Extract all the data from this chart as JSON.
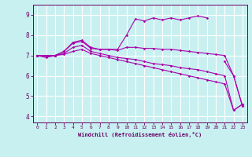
{
  "xlabel": "Windchill (Refroidissement éolien,°C)",
  "bg_color": "#c8f0f0",
  "line_color": "#aa00aa",
  "grid_color": "#ffffff",
  "spine_color": "#660066",
  "x_ticks": [
    0,
    1,
    2,
    3,
    4,
    5,
    6,
    7,
    8,
    9,
    10,
    11,
    12,
    13,
    14,
    15,
    16,
    17,
    18,
    19,
    20,
    21,
    22,
    23
  ],
  "y_ticks": [
    4,
    5,
    6,
    7,
    8,
    9
  ],
  "xlim": [
    -0.5,
    23.5
  ],
  "ylim": [
    3.7,
    9.5
  ],
  "lines": [
    {
      "x": [
        0,
        1,
        2,
        3,
        4,
        5,
        6,
        7,
        8,
        9,
        10,
        11,
        12,
        13,
        14,
        15,
        16,
        17,
        18,
        19,
        20,
        21,
        22,
        23
      ],
      "y": [
        7.0,
        6.9,
        7.0,
        7.2,
        7.65,
        7.75,
        7.4,
        7.3,
        7.3,
        7.3,
        8.0,
        8.8,
        8.7,
        8.85,
        8.75,
        8.85,
        8.75,
        8.85,
        8.95,
        8.85,
        null,
        6.7,
        6.0,
        4.5
      ]
    },
    {
      "x": [
        0,
        1,
        2,
        3,
        4,
        5,
        6,
        7,
        8,
        9,
        10,
        11,
        12,
        13,
        14,
        15,
        16,
        17,
        18,
        19,
        20,
        21,
        22,
        23
      ],
      "y": [
        7.0,
        6.95,
        7.0,
        7.2,
        7.6,
        7.7,
        7.35,
        7.3,
        7.3,
        7.25,
        7.4,
        7.4,
        7.35,
        7.35,
        7.3,
        7.3,
        7.25,
        7.2,
        7.15,
        7.1,
        7.05,
        7.0,
        6.0,
        4.5
      ]
    },
    {
      "x": [
        0,
        1,
        2,
        3,
        4,
        5,
        6,
        7,
        8,
        9,
        10,
        11,
        12,
        13,
        14,
        15,
        16,
        17,
        18,
        19,
        20,
        21,
        22,
        23
      ],
      "y": [
        7.0,
        7.0,
        7.0,
        7.1,
        7.4,
        7.5,
        7.2,
        7.1,
        7.0,
        6.9,
        6.85,
        6.8,
        6.7,
        6.6,
        6.55,
        6.5,
        6.4,
        6.35,
        6.3,
        6.2,
        6.1,
        6.0,
        4.3,
        4.6
      ]
    },
    {
      "x": [
        0,
        1,
        2,
        3,
        4,
        5,
        6,
        7,
        8,
        9,
        10,
        11,
        12,
        13,
        14,
        15,
        16,
        17,
        18,
        19,
        20,
        21,
        22,
        23
      ],
      "y": [
        7.0,
        7.0,
        7.0,
        7.05,
        7.2,
        7.3,
        7.1,
        7.0,
        6.9,
        6.8,
        6.7,
        6.6,
        6.5,
        6.4,
        6.3,
        6.2,
        6.1,
        6.0,
        5.9,
        5.8,
        5.7,
        5.6,
        4.3,
        4.6
      ]
    }
  ]
}
